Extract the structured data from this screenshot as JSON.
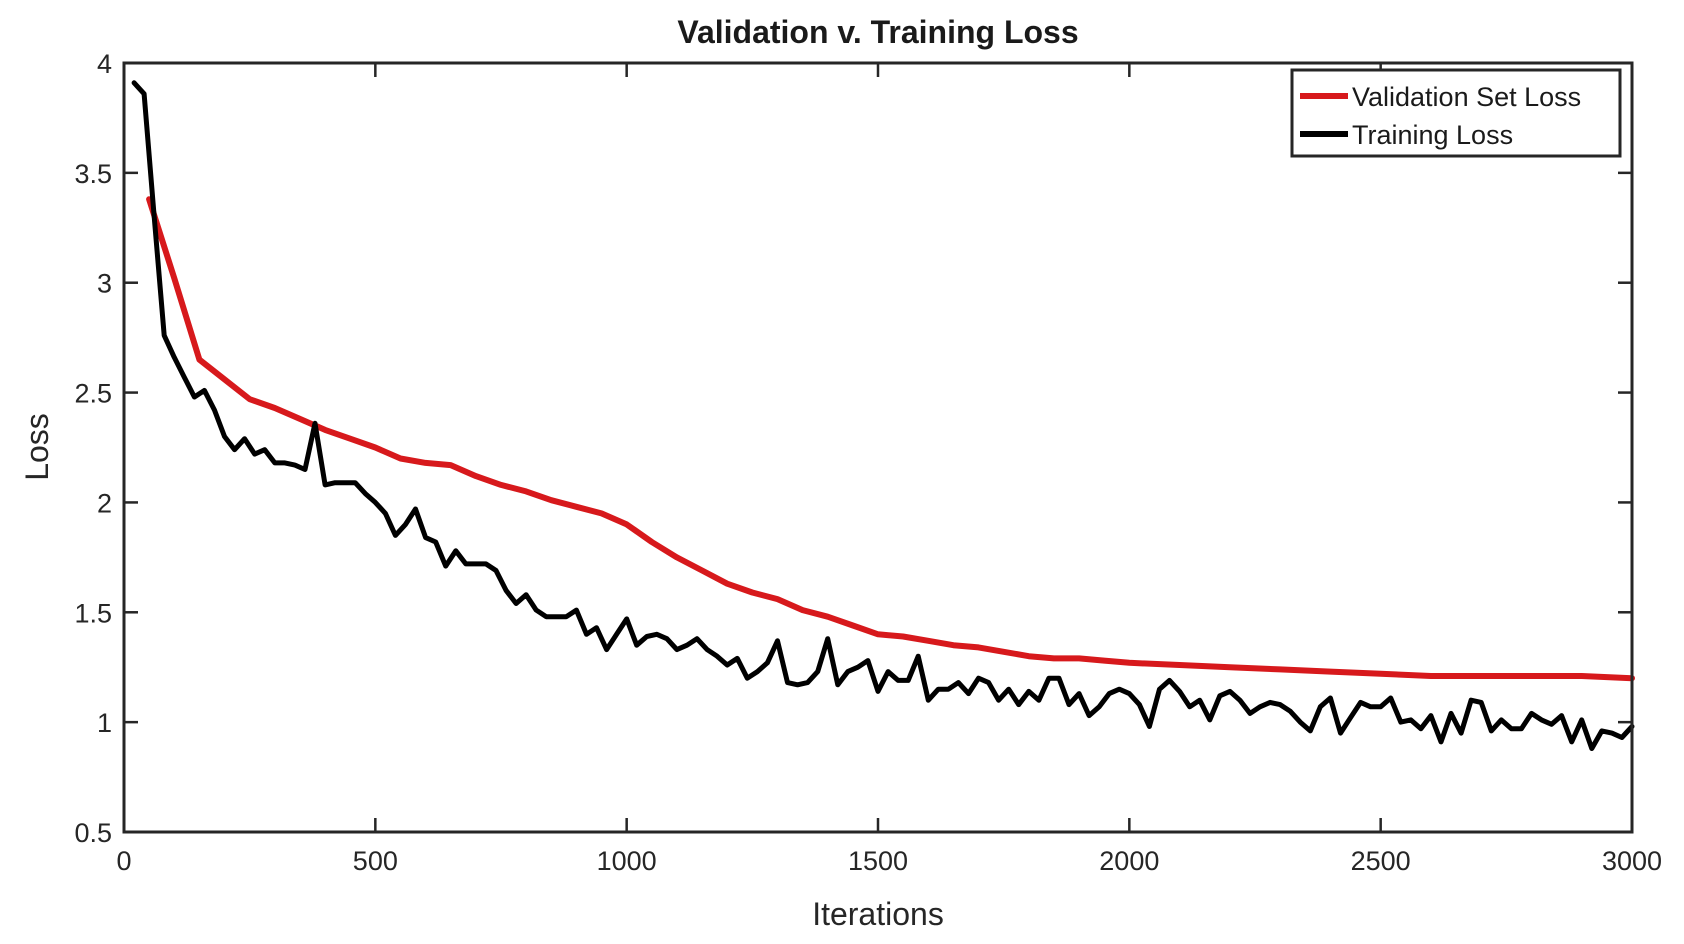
{
  "chart_data": {
    "type": "line",
    "title": "Validation v. Training Loss",
    "xlabel": "Iterations",
    "ylabel": "Loss",
    "xlim": [
      0,
      3000
    ],
    "ylim": [
      0.5,
      4
    ],
    "xticks": [
      0,
      500,
      1000,
      1500,
      2000,
      2500,
      3000
    ],
    "xtick_labels": [
      "0",
      "500",
      "1000",
      "1500",
      "2000",
      "2500",
      "3000"
    ],
    "yticks": [
      0.5,
      1,
      1.5,
      2,
      2.5,
      3,
      3.5,
      4
    ],
    "ytick_labels": [
      "0.5",
      "1",
      "1.5",
      "2",
      "2.5",
      "3",
      "3.5",
      "4"
    ],
    "grid": false,
    "legend_position": "top-right",
    "series": [
      {
        "name": "Validation Set Loss",
        "color": "#d7191c",
        "x": [
          50,
          100,
          150,
          200,
          250,
          300,
          350,
          400,
          450,
          500,
          550,
          600,
          650,
          700,
          750,
          800,
          850,
          900,
          950,
          1000,
          1050,
          1100,
          1150,
          1200,
          1250,
          1300,
          1350,
          1400,
          1450,
          1500,
          1550,
          1600,
          1650,
          1700,
          1750,
          1800,
          1850,
          1900,
          1950,
          2000,
          2100,
          2200,
          2300,
          2400,
          2500,
          2600,
          2700,
          2800,
          2900,
          3000
        ],
        "y": [
          3.38,
          3.02,
          2.65,
          2.56,
          2.47,
          2.43,
          2.38,
          2.33,
          2.29,
          2.25,
          2.2,
          2.18,
          2.17,
          2.12,
          2.08,
          2.05,
          2.01,
          1.98,
          1.95,
          1.9,
          1.82,
          1.75,
          1.69,
          1.63,
          1.59,
          1.56,
          1.51,
          1.48,
          1.44,
          1.4,
          1.39,
          1.37,
          1.35,
          1.34,
          1.32,
          1.3,
          1.29,
          1.29,
          1.28,
          1.27,
          1.26,
          1.25,
          1.24,
          1.23,
          1.22,
          1.21,
          1.21,
          1.21,
          1.21,
          1.2
        ]
      },
      {
        "name": "Training Loss",
        "color": "#000000",
        "x": [
          20,
          40,
          60,
          80,
          100,
          120,
          140,
          160,
          180,
          200,
          220,
          240,
          260,
          280,
          300,
          320,
          340,
          360,
          380,
          400,
          420,
          440,
          460,
          480,
          500,
          520,
          540,
          560,
          580,
          600,
          620,
          640,
          660,
          680,
          700,
          720,
          740,
          760,
          780,
          800,
          820,
          840,
          860,
          880,
          900,
          920,
          940,
          960,
          980,
          1000,
          1020,
          1040,
          1060,
          1080,
          1100,
          1120,
          1140,
          1160,
          1180,
          1200,
          1220,
          1240,
          1260,
          1280,
          1300,
          1320,
          1340,
          1360,
          1380,
          1400,
          1420,
          1440,
          1460,
          1480,
          1500,
          1520,
          1540,
          1560,
          1580,
          1600,
          1620,
          1640,
          1660,
          1680,
          1700,
          1720,
          1740,
          1760,
          1780,
          1800,
          1820,
          1840,
          1860,
          1880,
          1900,
          1920,
          1940,
          1960,
          1980,
          2000,
          2020,
          2040,
          2060,
          2080,
          2100,
          2120,
          2140,
          2160,
          2180,
          2200,
          2220,
          2240,
          2260,
          2280,
          2300,
          2320,
          2340,
          2360,
          2380,
          2400,
          2420,
          2440,
          2460,
          2480,
          2500,
          2520,
          2540,
          2560,
          2580,
          2600,
          2620,
          2640,
          2660,
          2680,
          2700,
          2720,
          2740,
          2760,
          2780,
          2800,
          2820,
          2840,
          2860,
          2880,
          2900,
          2920,
          2940,
          2960,
          2980,
          3000
        ],
        "y": [
          3.91,
          3.86,
          3.3,
          2.76,
          2.66,
          2.57,
          2.48,
          2.51,
          2.42,
          2.3,
          2.24,
          2.29,
          2.22,
          2.24,
          2.18,
          2.18,
          2.17,
          2.15,
          2.36,
          2.08,
          2.09,
          2.09,
          2.09,
          2.04,
          2.0,
          1.95,
          1.85,
          1.9,
          1.97,
          1.84,
          1.82,
          1.71,
          1.78,
          1.72,
          1.72,
          1.72,
          1.69,
          1.6,
          1.54,
          1.58,
          1.51,
          1.48,
          1.48,
          1.48,
          1.51,
          1.4,
          1.43,
          1.33,
          1.4,
          1.47,
          1.35,
          1.39,
          1.4,
          1.38,
          1.33,
          1.35,
          1.38,
          1.33,
          1.3,
          1.26,
          1.29,
          1.2,
          1.23,
          1.27,
          1.37,
          1.18,
          1.17,
          1.18,
          1.23,
          1.38,
          1.17,
          1.23,
          1.25,
          1.28,
          1.14,
          1.23,
          1.19,
          1.19,
          1.3,
          1.1,
          1.15,
          1.15,
          1.18,
          1.13,
          1.2,
          1.18,
          1.1,
          1.15,
          1.08,
          1.14,
          1.1,
          1.2,
          1.2,
          1.08,
          1.13,
          1.03,
          1.07,
          1.13,
          1.15,
          1.13,
          1.08,
          0.98,
          1.15,
          1.19,
          1.14,
          1.07,
          1.1,
          1.01,
          1.12,
          1.14,
          1.1,
          1.04,
          1.07,
          1.09,
          1.08,
          1.05,
          1.0,
          0.96,
          1.07,
          1.11,
          0.95,
          1.02,
          1.09,
          1.07,
          1.07,
          1.11,
          1.0,
          1.01,
          0.97,
          1.03,
          0.91,
          1.04,
          0.95,
          1.1,
          1.09,
          0.96,
          1.01,
          0.97,
          0.97,
          1.04,
          1.01,
          0.99,
          1.03,
          0.91,
          1.01,
          0.88,
          0.96,
          0.95,
          0.93,
          0.98
        ]
      }
    ]
  }
}
